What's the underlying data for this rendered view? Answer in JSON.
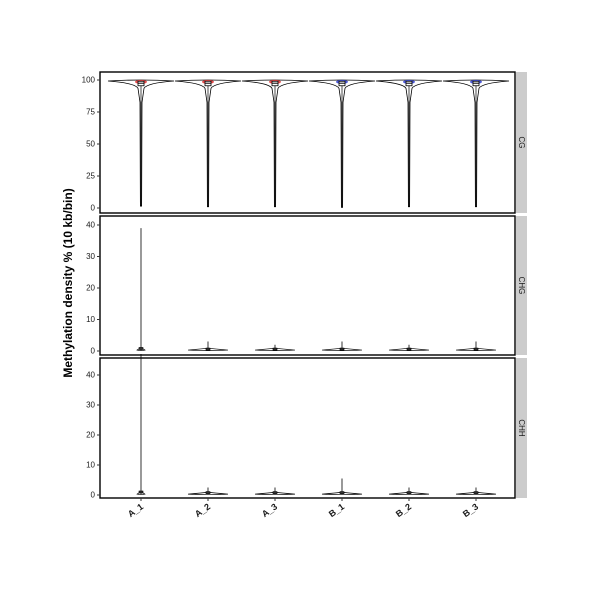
{
  "chart_data": {
    "type": "violin",
    "ylabel": "Methylation density % (10 kb/bin)",
    "categories": [
      "A_1",
      "A_2",
      "A_3",
      "B_1",
      "B_2",
      "B_3"
    ],
    "category_colors": [
      "#e03030",
      "#e03030",
      "#e03030",
      "#3040d0",
      "#3040d0",
      "#3040d0"
    ],
    "panels": [
      {
        "strip": "CG",
        "ylim": [
          0,
          100
        ],
        "yticks": [
          0,
          25,
          50,
          75,
          100
        ],
        "ytick_labels": [
          "0",
          "25",
          "50",
          "75",
          "100"
        ],
        "series": [
          {
            "name": "A_1",
            "min": 1.5,
            "q1": 95.5,
            "median": 97.5,
            "q3": 99,
            "max": 100
          },
          {
            "name": "A_2",
            "min": 1.0,
            "q1": 95.5,
            "median": 97.5,
            "q3": 99,
            "max": 100
          },
          {
            "name": "A_3",
            "min": 1.0,
            "q1": 95.5,
            "median": 97.5,
            "q3": 99,
            "max": 100
          },
          {
            "name": "B_1",
            "min": 0.5,
            "q1": 95.5,
            "median": 97.5,
            "q3": 99,
            "max": 100
          },
          {
            "name": "B_2",
            "min": 1.0,
            "q1": 95.5,
            "median": 97.5,
            "q3": 99,
            "max": 100
          },
          {
            "name": "B_3",
            "min": 1.0,
            "q1": 95.5,
            "median": 97.5,
            "q3": 99,
            "max": 100
          }
        ]
      },
      {
        "strip": "CHG",
        "ylim": [
          0,
          40
        ],
        "yticks": [
          0,
          10,
          20,
          30,
          40
        ],
        "ytick_labels": [
          "0",
          "10",
          "20",
          "30",
          "40"
        ],
        "series": [
          {
            "name": "A_1",
            "min": 0,
            "q1": 0.2,
            "median": 0.4,
            "q3": 0.8,
            "max": 39
          },
          {
            "name": "A_2",
            "min": 0,
            "q1": 0.1,
            "median": 0.3,
            "q3": 0.6,
            "max": 3
          },
          {
            "name": "A_3",
            "min": 0,
            "q1": 0.1,
            "median": 0.3,
            "q3": 0.6,
            "max": 2
          },
          {
            "name": "B_1",
            "min": 0,
            "q1": 0.1,
            "median": 0.3,
            "q3": 0.6,
            "max": 3
          },
          {
            "name": "B_2",
            "min": 0,
            "q1": 0.1,
            "median": 0.3,
            "q3": 0.6,
            "max": 2
          },
          {
            "name": "B_3",
            "min": 0,
            "q1": 0.1,
            "median": 0.3,
            "q3": 0.6,
            "max": 3
          }
        ]
      },
      {
        "strip": "CHH",
        "ylim": [
          0,
          45
        ],
        "yticks": [
          0,
          10,
          20,
          30,
          40
        ],
        "ytick_labels": [
          "0",
          "10",
          "20",
          "30",
          "40"
        ],
        "series": [
          {
            "name": "A_1",
            "min": 0,
            "q1": 0.3,
            "median": 0.6,
            "q3": 1.0,
            "max": 47
          },
          {
            "name": "A_2",
            "min": 0,
            "q1": 0.2,
            "median": 0.5,
            "q3": 0.8,
            "max": 2.5
          },
          {
            "name": "A_3",
            "min": 0,
            "q1": 0.2,
            "median": 0.5,
            "q3": 0.8,
            "max": 2.5
          },
          {
            "name": "B_1",
            "min": 0,
            "q1": 0.2,
            "median": 0.5,
            "q3": 0.8,
            "max": 5.5
          },
          {
            "name": "B_2",
            "min": 0,
            "q1": 0.2,
            "median": 0.5,
            "q3": 0.8,
            "max": 2.5
          },
          {
            "name": "B_3",
            "min": 0,
            "q1": 0.2,
            "median": 0.5,
            "q3": 0.8,
            "max": 2.5
          }
        ]
      }
    ]
  }
}
